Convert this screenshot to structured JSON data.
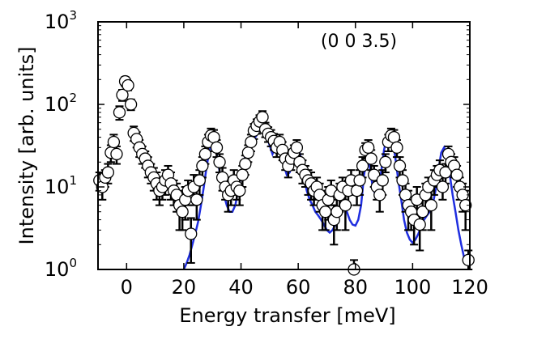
{
  "chart_data": {
    "type": "scatter",
    "annotation": "(0 0 3.5)",
    "xlabel": "Energy transfer [meV]",
    "ylabel": "Intensity [arb. units]",
    "xlim": [
      -10,
      120
    ],
    "ylim": [
      1,
      1000
    ],
    "yscale": "log",
    "grid": false,
    "x_ticks": [
      0,
      20,
      40,
      60,
      80,
      100,
      120
    ],
    "x_tick_labels": [
      "0",
      "20",
      "40",
      "60",
      "80",
      "100",
      "120"
    ],
    "y_ticks": [
      {
        "value": 1,
        "base": "10",
        "exp": "0"
      },
      {
        "value": 10,
        "base": "10",
        "exp": "1"
      },
      {
        "value": 100,
        "base": "10",
        "exp": "2"
      },
      {
        "value": 1000,
        "base": "10",
        "exp": "3"
      }
    ],
    "series": [
      {
        "kind": "data",
        "marker": "open-circle",
        "error_bars": true,
        "points": [
          {
            "x": -9.5,
            "y": 12,
            "err": 3
          },
          {
            "x": -8.5,
            "y": 10,
            "err": 3
          },
          {
            "x": -7.5,
            "y": 13,
            "err": 3
          },
          {
            "x": -6.5,
            "y": 15,
            "err": 4
          },
          {
            "x": -5.5,
            "y": 26,
            "err": 6
          },
          {
            "x": -4.5,
            "y": 35,
            "err": 8
          },
          {
            "x": -3.5,
            "y": 25,
            "err": 6
          },
          {
            "x": -2.5,
            "y": 80,
            "err": 15
          },
          {
            "x": -1.5,
            "y": 130,
            "err": 20
          },
          {
            "x": -0.5,
            "y": 190,
            "err": 25
          },
          {
            "x": 0.5,
            "y": 170,
            "err": 22
          },
          {
            "x": 1.5,
            "y": 100,
            "err": 15
          },
          {
            "x": 2.5,
            "y": 45,
            "err": 9
          },
          {
            "x": 3.5,
            "y": 38,
            "err": 8
          },
          {
            "x": 4.5,
            "y": 30,
            "err": 7
          },
          {
            "x": 5.5,
            "y": 25,
            "err": 6
          },
          {
            "x": 6.5,
            "y": 22,
            "err": 5
          },
          {
            "x": 7.5,
            "y": 18,
            "err": 5
          },
          {
            "x": 8.5,
            "y": 15,
            "err": 4
          },
          {
            "x": 9.5,
            "y": 13,
            "err": 4
          },
          {
            "x": 10.5,
            "y": 11,
            "err": 4
          },
          {
            "x": 11.5,
            "y": 9,
            "err": 3
          },
          {
            "x": 12.5,
            "y": 10,
            "err": 3
          },
          {
            "x": 13.5,
            "y": 12,
            "err": 4
          },
          {
            "x": 14.5,
            "y": 14,
            "err": 4
          },
          {
            "x": 15.5,
            "y": 11,
            "err": 4
          },
          {
            "x": 16.5,
            "y": 9,
            "err": 3
          },
          {
            "x": 17.5,
            "y": 8,
            "err": 3
          },
          {
            "x": 18.5,
            "y": 6,
            "err": 3
          },
          {
            "x": 19.5,
            "y": 5,
            "err": 2
          },
          {
            "x": 20.5,
            "y": 7,
            "err": 3
          },
          {
            "x": 21.5,
            "y": 9,
            "err": 3
          },
          {
            "x": 22.5,
            "y": 2.7,
            "err": 1.5
          },
          {
            "x": 23.5,
            "y": 10,
            "err": 4
          },
          {
            "x": 24.5,
            "y": 7,
            "err": 3
          },
          {
            "x": 25.5,
            "y": 12,
            "err": 4
          },
          {
            "x": 26.5,
            "y": 18,
            "err": 5
          },
          {
            "x": 27.5,
            "y": 25,
            "err": 6
          },
          {
            "x": 28.5,
            "y": 35,
            "err": 8
          },
          {
            "x": 29.5,
            "y": 42,
            "err": 9
          },
          {
            "x": 30.5,
            "y": 40,
            "err": 9
          },
          {
            "x": 31.5,
            "y": 30,
            "err": 7
          },
          {
            "x": 32.5,
            "y": 20,
            "err": 5
          },
          {
            "x": 33.5,
            "y": 13,
            "err": 4
          },
          {
            "x": 34.5,
            "y": 10,
            "err": 3
          },
          {
            "x": 35.5,
            "y": 8,
            "err": 3
          },
          {
            "x": 36.5,
            "y": 9,
            "err": 3
          },
          {
            "x": 37.5,
            "y": 12,
            "err": 4
          },
          {
            "x": 38.5,
            "y": 10,
            "err": 3
          },
          {
            "x": 39.5,
            "y": 9,
            "err": 3
          },
          {
            "x": 40.5,
            "y": 14,
            "err": 4
          },
          {
            "x": 41.5,
            "y": 19,
            "err": 5
          },
          {
            "x": 42.5,
            "y": 26,
            "err": 6
          },
          {
            "x": 43.5,
            "y": 35,
            "err": 8
          },
          {
            "x": 44.5,
            "y": 48,
            "err": 10
          },
          {
            "x": 45.5,
            "y": 55,
            "err": 11
          },
          {
            "x": 46.5,
            "y": 62,
            "err": 12
          },
          {
            "x": 47.5,
            "y": 70,
            "err": 13
          },
          {
            "x": 48.5,
            "y": 50,
            "err": 10
          },
          {
            "x": 49.5,
            "y": 44,
            "err": 9
          },
          {
            "x": 50.5,
            "y": 40,
            "err": 9
          },
          {
            "x": 51.5,
            "y": 36,
            "err": 8
          },
          {
            "x": 52.5,
            "y": 30,
            "err": 7
          },
          {
            "x": 53.5,
            "y": 35,
            "err": 8
          },
          {
            "x": 54.5,
            "y": 28,
            "err": 7
          },
          {
            "x": 55.5,
            "y": 22,
            "err": 6
          },
          {
            "x": 56.5,
            "y": 18,
            "err": 5
          },
          {
            "x": 57.5,
            "y": 22,
            "err": 6
          },
          {
            "x": 58.5,
            "y": 26,
            "err": 6
          },
          {
            "x": 59.5,
            "y": 30,
            "err": 7
          },
          {
            "x": 60.5,
            "y": 20,
            "err": 5
          },
          {
            "x": 61.5,
            "y": 16,
            "err": 5
          },
          {
            "x": 62.5,
            "y": 14,
            "err": 4
          },
          {
            "x": 63.5,
            "y": 12,
            "err": 4
          },
          {
            "x": 64.5,
            "y": 11,
            "err": 4
          },
          {
            "x": 65.5,
            "y": 9,
            "err": 3
          },
          {
            "x": 66.5,
            "y": 10,
            "err": 3
          },
          {
            "x": 67.5,
            "y": 8,
            "err": 3
          },
          {
            "x": 68.5,
            "y": 6,
            "err": 3
          },
          {
            "x": 69.5,
            "y": 5,
            "err": 2
          },
          {
            "x": 70.5,
            "y": 7,
            "err": 3
          },
          {
            "x": 71.5,
            "y": 9,
            "err": 3
          },
          {
            "x": 72.5,
            "y": 4,
            "err": 2
          },
          {
            "x": 73.5,
            "y": 5,
            "err": 2
          },
          {
            "x": 74.5,
            "y": 8,
            "err": 3
          },
          {
            "x": 75.5,
            "y": 10,
            "err": 3
          },
          {
            "x": 76.5,
            "y": 6,
            "err": 3
          },
          {
            "x": 77.5,
            "y": 9,
            "err": 3
          },
          {
            "x": 78.5,
            "y": 12,
            "err": 4
          },
          {
            "x": 79.5,
            "y": 1.0,
            "err": 0.3
          },
          {
            "x": 80.5,
            "y": 9,
            "err": 3
          },
          {
            "x": 81.5,
            "y": 12,
            "err": 4
          },
          {
            "x": 82.5,
            "y": 18,
            "err": 5
          },
          {
            "x": 83.5,
            "y": 28,
            "err": 6
          },
          {
            "x": 84.5,
            "y": 30,
            "err": 7
          },
          {
            "x": 85.5,
            "y": 22,
            "err": 6
          },
          {
            "x": 86.5,
            "y": 14,
            "err": 4
          },
          {
            "x": 87.5,
            "y": 10,
            "err": 3
          },
          {
            "x": 88.5,
            "y": 8,
            "err": 3
          },
          {
            "x": 89.5,
            "y": 12,
            "err": 4
          },
          {
            "x": 90.5,
            "y": 20,
            "err": 5
          },
          {
            "x": 91.5,
            "y": 35,
            "err": 8
          },
          {
            "x": 92.5,
            "y": 42,
            "err": 9
          },
          {
            "x": 93.5,
            "y": 40,
            "err": 9
          },
          {
            "x": 94.5,
            "y": 30,
            "err": 7
          },
          {
            "x": 95.5,
            "y": 18,
            "err": 5
          },
          {
            "x": 96.5,
            "y": 12,
            "err": 4
          },
          {
            "x": 97.5,
            "y": 8,
            "err": 3
          },
          {
            "x": 98.5,
            "y": 6,
            "err": 3
          },
          {
            "x": 99.5,
            "y": 5,
            "err": 2
          },
          {
            "x": 100.5,
            "y": 4,
            "err": 2
          },
          {
            "x": 101.5,
            "y": 7,
            "err": 3
          },
          {
            "x": 102.5,
            "y": 3.5,
            "err": 1.8
          },
          {
            "x": 103.5,
            "y": 5,
            "err": 2
          },
          {
            "x": 104.5,
            "y": 8,
            "err": 3
          },
          {
            "x": 105.5,
            "y": 10,
            "err": 3
          },
          {
            "x": 106.5,
            "y": 6,
            "err": 3
          },
          {
            "x": 107.5,
            "y": 12,
            "err": 4
          },
          {
            "x": 108.5,
            "y": 14,
            "err": 4
          },
          {
            "x": 109.5,
            "y": 16,
            "err": 5
          },
          {
            "x": 110.5,
            "y": 10,
            "err": 3
          },
          {
            "x": 111.5,
            "y": 15,
            "err": 4
          },
          {
            "x": 112.5,
            "y": 25,
            "err": 6
          },
          {
            "x": 113.5,
            "y": 20,
            "err": 5
          },
          {
            "x": 114.5,
            "y": 18,
            "err": 5
          },
          {
            "x": 115.5,
            "y": 14,
            "err": 4
          },
          {
            "x": 116.5,
            "y": 10,
            "err": 3
          },
          {
            "x": 117.5,
            "y": 8,
            "err": 3
          },
          {
            "x": 118.5,
            "y": 6,
            "err": 3
          },
          {
            "x": 119.5,
            "y": 1.3,
            "err": 0.4
          }
        ]
      },
      {
        "kind": "fit",
        "color": "#1f2ee0",
        "x": [
          20,
          21,
          22,
          23,
          24,
          25,
          26,
          27,
          28,
          29,
          30,
          31,
          32,
          33,
          34,
          35,
          36,
          37,
          38,
          39,
          40,
          41,
          42,
          43,
          44,
          45,
          46,
          47,
          48,
          49,
          50,
          51,
          52,
          53,
          54,
          55,
          56,
          57,
          58,
          59,
          60,
          61,
          62,
          63,
          64,
          65,
          66,
          67,
          68,
          69,
          70,
          71,
          72,
          73,
          74,
          75,
          76,
          77,
          78,
          79,
          80,
          81,
          82,
          83,
          84,
          85,
          86,
          87,
          88,
          89,
          90,
          91,
          92,
          93,
          94,
          95,
          96,
          97,
          98,
          99,
          100,
          101,
          102,
          103,
          104,
          105,
          106,
          107,
          108,
          109,
          110,
          111,
          112,
          113,
          114,
          115,
          116,
          117,
          118,
          119,
          120
        ],
        "y": [
          1.0,
          1.2,
          1.5,
          2.0,
          2.7,
          3.8,
          6,
          10,
          18,
          28,
          35,
          30,
          20,
          12,
          8,
          6,
          5,
          5,
          6,
          9,
          14,
          20,
          28,
          36,
          42,
          40,
          45,
          52,
          50,
          42,
          32,
          25,
          30,
          36,
          28,
          18,
          14,
          15,
          20,
          28,
          30,
          22,
          13,
          9,
          7,
          6,
          5,
          4.5,
          4,
          3.5,
          3.0,
          2.8,
          3.0,
          3.5,
          4.5,
          6,
          6.5,
          5,
          4,
          3.5,
          3.4,
          4,
          6,
          14,
          22,
          18,
          10,
          8,
          9,
          15,
          28,
          40,
          44,
          38,
          22,
          12,
          7,
          4,
          2.8,
          2.3,
          2.1,
          2.3,
          2.7,
          3.3,
          4,
          4.5,
          5,
          6,
          9,
          16,
          26,
          30,
          24,
          14,
          8,
          5,
          3,
          2,
          1.4,
          1.2,
          1.1
        ]
      }
    ]
  }
}
